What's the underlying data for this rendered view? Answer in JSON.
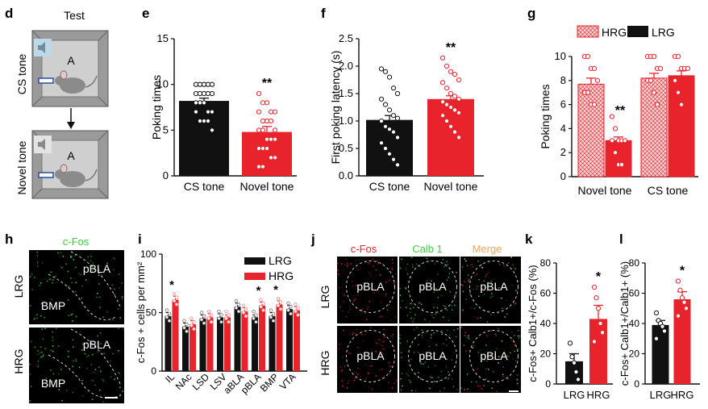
{
  "colors": {
    "black": "#111111",
    "red": "#e8232b",
    "pink": "#f3b7b7",
    "green": "#3bd13b",
    "red_text": "#e8232b",
    "orange": "#f2a55a"
  },
  "panels": {
    "d": {
      "letter": "d",
      "title": "Test",
      "row1": "CS tone",
      "row2": "Novel tone",
      "box_label": "A"
    },
    "h": {
      "letter": "h",
      "title": "c-Fos",
      "row1": "LRG",
      "row2": "HRG",
      "region1": "pBLA",
      "region2": "BMP"
    },
    "j": {
      "letter": "j",
      "col1": "c-Fos",
      "col2": "Calb 1",
      "col3": "Merge",
      "row1": "LRG",
      "row2": "HRG",
      "region": "pBLA"
    }
  },
  "chart_data": [
    {
      "id": "e",
      "letter": "e",
      "type": "bar",
      "categories": [
        "CS tone",
        "Novel tone"
      ],
      "values": [
        8.2,
        4.8
      ],
      "errors": [
        0.3,
        0.6
      ],
      "ylabel": "Poking times",
      "ylim": [
        0,
        15
      ],
      "yticks": [
        0,
        5,
        10,
        15
      ],
      "significance": [
        "",
        "**"
      ],
      "points": [
        [
          10,
          10,
          10,
          10,
          10,
          10,
          10,
          10,
          10,
          10,
          9,
          9,
          9,
          9,
          9,
          8,
          8,
          8,
          7,
          7,
          7,
          6,
          6,
          6,
          5
        ],
        [
          9,
          8,
          8,
          7,
          7,
          7,
          6,
          6,
          6,
          5,
          5,
          5,
          4,
          4,
          4,
          3,
          3,
          3,
          2,
          2,
          1,
          1
        ]
      ]
    },
    {
      "id": "f",
      "letter": "f",
      "type": "bar",
      "categories": [
        "CS tone",
        "Novel tone"
      ],
      "values": [
        1.02,
        1.4
      ],
      "errors": [
        0.08,
        0.06
      ],
      "ylabel": "First poking latency (s)",
      "ylim": [
        0,
        2.5
      ],
      "yticks": [
        0,
        0.5,
        1.0,
        1.5,
        2.0,
        2.5
      ],
      "significance": [
        "",
        "**"
      ],
      "points": [
        [
          1.95,
          1.9,
          1.8,
          1.6,
          1.5,
          1.4,
          1.3,
          1.2,
          1.1,
          1.05,
          1.0,
          0.9,
          0.85,
          0.8,
          0.7,
          0.6,
          0.5,
          0.4,
          0.3,
          0.2
        ],
        [
          2.15,
          2.0,
          1.9,
          1.85,
          1.75,
          1.7,
          1.6,
          1.5,
          1.45,
          1.4,
          1.35,
          1.3,
          1.25,
          1.2,
          1.15,
          1.1,
          1.0,
          0.9,
          0.8,
          0.7
        ]
      ]
    },
    {
      "id": "g",
      "letter": "g",
      "type": "bar",
      "categories": [
        "Novel tone",
        "CS tone"
      ],
      "series": [
        {
          "name": "HRG",
          "values": [
            7.7,
            8.2
          ],
          "errors": [
            0.5,
            0.4
          ]
        },
        {
          "name": "LRG",
          "values": [
            3.0,
            8.4
          ],
          "errors": [
            0.3,
            0.4
          ]
        }
      ],
      "ylabel": "Poking times",
      "ylim": [
        0,
        10
      ],
      "yticks": [
        0,
        2,
        4,
        6,
        8,
        10
      ],
      "significance": "**",
      "points": [
        [
          [
            10,
            10,
            9,
            9,
            8,
            7,
            7,
            6,
            6
          ],
          [
            5,
            4,
            3,
            3,
            3,
            3,
            2,
            1,
            1
          ]
        ],
        [
          [
            10,
            10,
            10,
            9,
            9,
            8,
            8,
            7,
            6
          ],
          [
            10,
            10,
            9,
            9,
            9,
            8,
            7,
            6
          ]
        ]
      ]
    },
    {
      "id": "i",
      "letter": "i",
      "type": "bar",
      "categories": [
        "IL",
        "NAc",
        "LSD",
        "LSV",
        "aBLA",
        "pBLA",
        "BMP",
        "VTA"
      ],
      "series": [
        {
          "name": "LRG",
          "values": [
            47,
            38,
            45,
            46,
            55,
            46,
            47,
            53
          ],
          "errors": [
            3,
            3,
            3,
            3,
            3,
            2,
            3,
            3
          ]
        },
        {
          "name": "HRG",
          "values": [
            61,
            40,
            46,
            46,
            51,
            56,
            57,
            52
          ],
          "errors": [
            3,
            3,
            3,
            2,
            3,
            3,
            3,
            3
          ]
        }
      ],
      "ylabel": "c-Fos + cells per mm²",
      "ylim": [
        0,
        100
      ],
      "yticks": [
        0,
        50,
        100
      ],
      "significance": [
        "*",
        "",
        "",
        "",
        "",
        "*",
        "*",
        ""
      ]
    },
    {
      "id": "k",
      "letter": "k",
      "type": "bar",
      "categories": [
        "LRG",
        "HRG"
      ],
      "values": [
        15,
        43
      ],
      "errors": [
        5,
        9
      ],
      "ylabel": "c-Fos+ Calb1+/c-Fos (%)",
      "ylim": [
        0,
        80
      ],
      "yticks": [
        0,
        20,
        40,
        60,
        80
      ],
      "significance": [
        "",
        "*"
      ],
      "points": [
        [
          27,
          18,
          14,
          8,
          3
        ],
        [
          64,
          57,
          50,
          40,
          34,
          28
        ]
      ]
    },
    {
      "id": "l",
      "letter": "l",
      "type": "bar",
      "categories": [
        "LRG",
        "HRG"
      ],
      "values": [
        39,
        56
      ],
      "errors": [
        3,
        5
      ],
      "ylabel": "c-Fos+ Calb1+/Calb1+ (%)",
      "ylim": [
        0,
        80
      ],
      "yticks": [
        0,
        20,
        40,
        60,
        80
      ],
      "significance": [
        "",
        "*"
      ],
      "points": [
        [
          47,
          42,
          40,
          38,
          35,
          30
        ],
        [
          68,
          62,
          57,
          54,
          50,
          45
        ]
      ]
    }
  ]
}
